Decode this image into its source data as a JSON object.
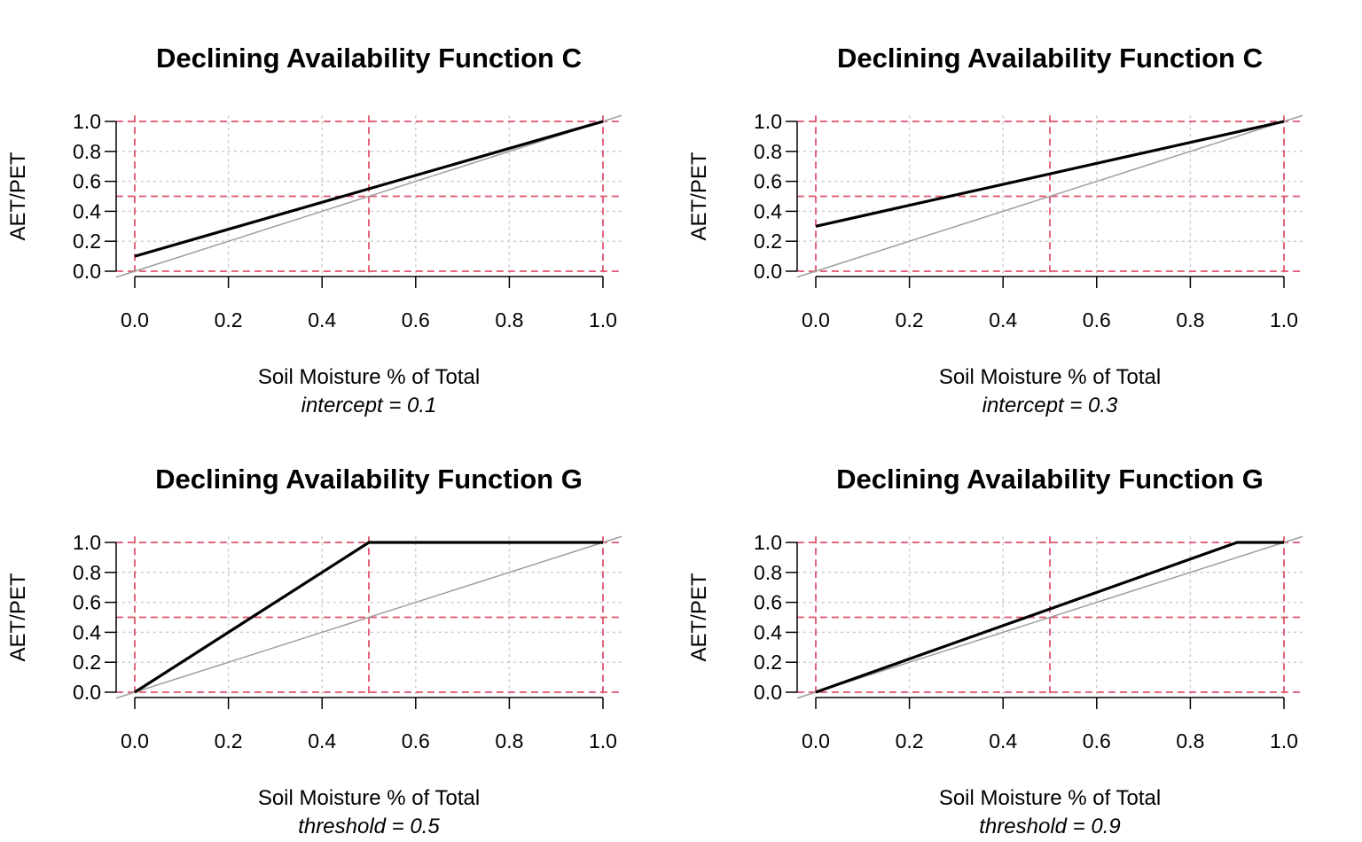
{
  "chart_data": [
    {
      "type": "line",
      "title": "Declining Availability Function C",
      "xlabel": "Soil Moisture % of Total",
      "ylabel": "AET/PET",
      "subtitle": "intercept = 0.1",
      "xlim": [
        0,
        1
      ],
      "ylim": [
        0,
        1
      ],
      "x_ticks": [
        "0.0",
        "0.2",
        "0.4",
        "0.6",
        "0.8",
        "1.0"
      ],
      "y_ticks": [
        "0.0",
        "0.2",
        "0.4",
        "0.6",
        "0.8",
        "1.0"
      ],
      "grid": true,
      "reference_lines": {
        "vertical": [
          0,
          0.5,
          1
        ],
        "horizontal": [
          0,
          0.5,
          1
        ],
        "color": "#DF536B"
      },
      "series": [
        {
          "role": "function",
          "x": [
            0,
            1
          ],
          "y": [
            0.1,
            1
          ],
          "color": "#000000"
        },
        {
          "role": "identity",
          "x": [
            0,
            1
          ],
          "y": [
            0,
            1
          ],
          "color": "#9E9E9E"
        }
      ]
    },
    {
      "type": "line",
      "title": "Declining Availability Function C",
      "xlabel": "Soil Moisture % of Total",
      "ylabel": "AET/PET",
      "subtitle": "intercept = 0.3",
      "xlim": [
        0,
        1
      ],
      "ylim": [
        0,
        1
      ],
      "x_ticks": [
        "0.0",
        "0.2",
        "0.4",
        "0.6",
        "0.8",
        "1.0"
      ],
      "y_ticks": [
        "0.0",
        "0.2",
        "0.4",
        "0.6",
        "0.8",
        "1.0"
      ],
      "grid": true,
      "reference_lines": {
        "vertical": [
          0,
          0.5,
          1
        ],
        "horizontal": [
          0,
          0.5,
          1
        ],
        "color": "#DF536B"
      },
      "series": [
        {
          "role": "function",
          "x": [
            0,
            1
          ],
          "y": [
            0.3,
            1
          ],
          "color": "#000000"
        },
        {
          "role": "identity",
          "x": [
            0,
            1
          ],
          "y": [
            0,
            1
          ],
          "color": "#9E9E9E"
        }
      ]
    },
    {
      "type": "line",
      "title": "Declining Availability Function G",
      "xlabel": "Soil Moisture % of Total",
      "ylabel": "AET/PET",
      "subtitle": "threshold = 0.5",
      "xlim": [
        0,
        1
      ],
      "ylim": [
        0,
        1
      ],
      "x_ticks": [
        "0.0",
        "0.2",
        "0.4",
        "0.6",
        "0.8",
        "1.0"
      ],
      "y_ticks": [
        "0.0",
        "0.2",
        "0.4",
        "0.6",
        "0.8",
        "1.0"
      ],
      "grid": true,
      "reference_lines": {
        "vertical": [
          0,
          0.5,
          1
        ],
        "horizontal": [
          0,
          0.5,
          1
        ],
        "color": "#DF536B"
      },
      "series": [
        {
          "role": "function",
          "x": [
            0,
            0.5,
            1
          ],
          "y": [
            0,
            1,
            1
          ],
          "color": "#000000"
        },
        {
          "role": "identity",
          "x": [
            0,
            1
          ],
          "y": [
            0,
            1
          ],
          "color": "#9E9E9E"
        }
      ]
    },
    {
      "type": "line",
      "title": "Declining Availability Function G",
      "xlabel": "Soil Moisture % of Total",
      "ylabel": "AET/PET",
      "subtitle": "threshold = 0.9",
      "xlim": [
        0,
        1
      ],
      "ylim": [
        0,
        1
      ],
      "x_ticks": [
        "0.0",
        "0.2",
        "0.4",
        "0.6",
        "0.8",
        "1.0"
      ],
      "y_ticks": [
        "0.0",
        "0.2",
        "0.4",
        "0.6",
        "0.8",
        "1.0"
      ],
      "grid": true,
      "reference_lines": {
        "vertical": [
          0,
          0.5,
          1
        ],
        "horizontal": [
          0,
          0.5,
          1
        ],
        "color": "#DF536B"
      },
      "series": [
        {
          "role": "function",
          "x": [
            0,
            0.9,
            1
          ],
          "y": [
            0,
            1,
            1
          ],
          "color": "#000000"
        },
        {
          "role": "identity",
          "x": [
            0,
            1
          ],
          "y": [
            0,
            1
          ],
          "color": "#9E9E9E"
        }
      ]
    }
  ]
}
